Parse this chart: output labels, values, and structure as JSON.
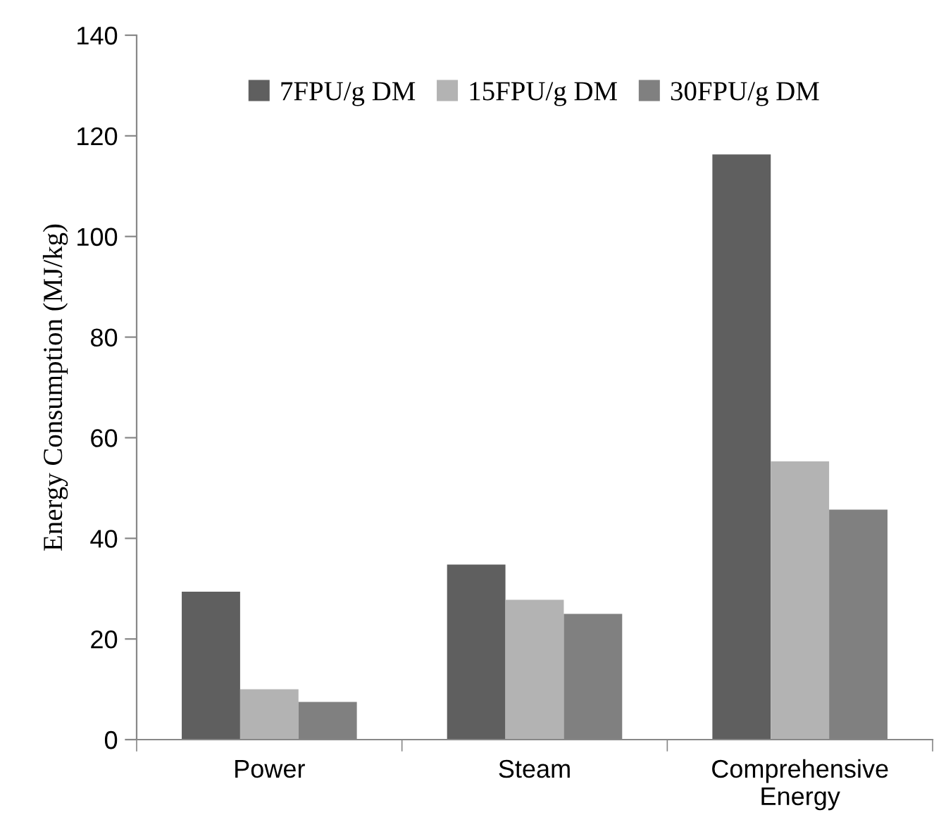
{
  "chart_data": {
    "type": "bar",
    "ylabel": "Energy Consumption (MJ/kg)",
    "categories": [
      "Power",
      "Steam",
      "Comprehensive\nEnergy"
    ],
    "series": [
      {
        "name": "7FPU/g DM",
        "color": "#5f5f5f",
        "values": [
          29.4,
          34.8,
          116.3
        ]
      },
      {
        "name": "15FPU/g DM",
        "color": "#b3b3b3",
        "values": [
          10.0,
          27.8,
          55.3
        ]
      },
      {
        "name": "30FPU/g DM",
        "color": "#808080",
        "values": [
          7.5,
          25.0,
          45.7
        ]
      }
    ],
    "ylim": [
      0,
      140
    ],
    "yticks": [
      0,
      20,
      40,
      60,
      80,
      100,
      120,
      140
    ],
    "grid": false,
    "legend": "top"
  }
}
